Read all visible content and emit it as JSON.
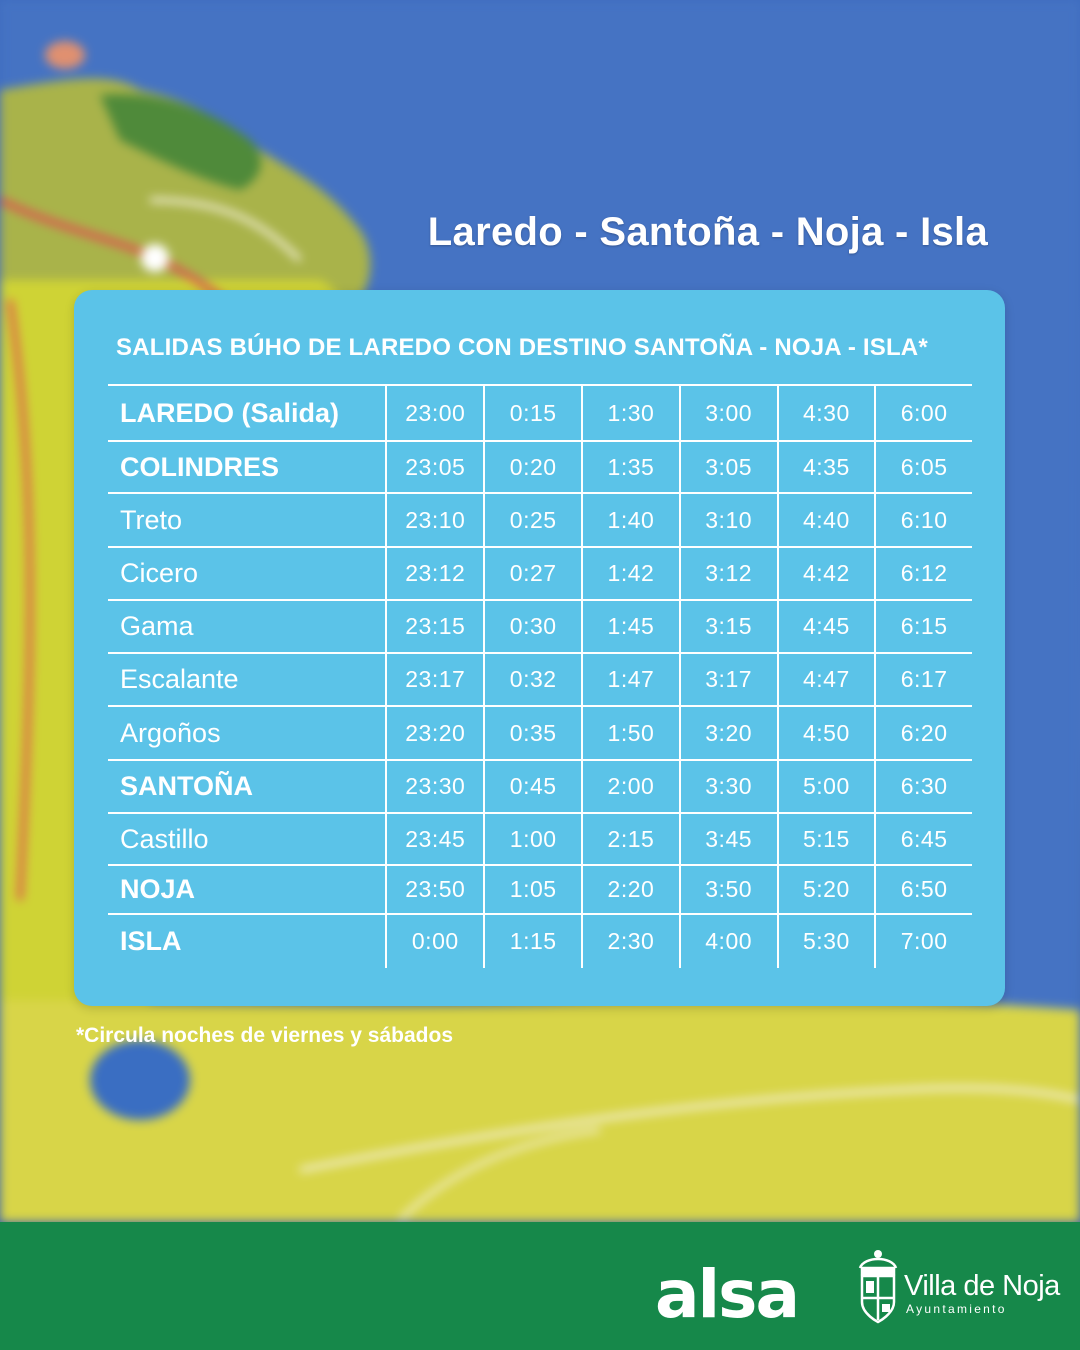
{
  "route_title": "Laredo - Santoña - Noja - Isla",
  "card_heading": "SALIDAS BÚHO DE LAREDO CON DESTINO SANTOÑA - NOJA - ISLA*",
  "rows": [
    {
      "stop": "LAREDO (Salida)",
      "times": [
        "23:00",
        "0:15",
        "1:30",
        "3:00",
        "4:30",
        "6:00"
      ]
    },
    {
      "stop": "COLINDRES",
      "times": [
        "23:05",
        "0:20",
        "1:35",
        "3:05",
        "4:35",
        "6:05"
      ]
    },
    {
      "stop": "Treto",
      "times": [
        "23:10",
        "0:25",
        "1:40",
        "3:10",
        "4:40",
        "6:10"
      ]
    },
    {
      "stop": "Cicero",
      "times": [
        "23:12",
        "0:27",
        "1:42",
        "3:12",
        "4:42",
        "6:12"
      ]
    },
    {
      "stop": "Gama",
      "times": [
        "23:15",
        "0:30",
        "1:45",
        "3:15",
        "4:45",
        "6:15"
      ]
    },
    {
      "stop": "Escalante",
      "times": [
        "23:17",
        "0:32",
        "1:47",
        "3:17",
        "4:47",
        "6:17"
      ]
    },
    {
      "stop": "Argoños",
      "times": [
        "23:20",
        "0:35",
        "1:50",
        "3:20",
        "4:50",
        "6:20"
      ]
    },
    {
      "stop": "SANTOÑA",
      "times": [
        "23:30",
        "0:45",
        "2:00",
        "3:30",
        "5:00",
        "6:30"
      ]
    },
    {
      "stop": "Castillo",
      "times": [
        "23:45",
        "1:00",
        "2:15",
        "3:45",
        "5:15",
        "6:45"
      ]
    },
    {
      "stop": "NOJA",
      "times": [
        "23:50",
        "1:05",
        "2:20",
        "3:50",
        "5:20",
        "6:50"
      ]
    },
    {
      "stop": "ISLA",
      "times": [
        "0:00",
        "1:15",
        "2:30",
        "4:00",
        "5:30",
        "7:00"
      ]
    }
  ],
  "footnote": "*Circula noches de viernes y sábados",
  "footer": {
    "alsa_logo": "alsa",
    "noja_logo": {
      "name": "Villa de Noja",
      "subtitle": "Ayuntamiento"
    }
  },
  "colors": {
    "card": "#5bc3e8",
    "footer": "#16884a",
    "text": "#ffffff"
  }
}
